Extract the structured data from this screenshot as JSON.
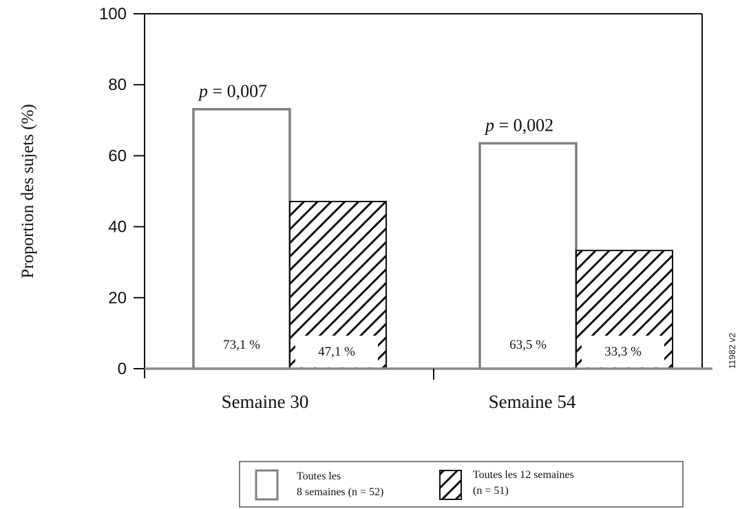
{
  "chart_data": {
    "type": "bar",
    "ylabel": "Proportion des sujets (%)",
    "ylim": [
      0,
      100
    ],
    "yticks": [
      0,
      20,
      40,
      60,
      80,
      100
    ],
    "categories": [
      "Semaine 30",
      "Semaine 54"
    ],
    "series": [
      {
        "name": "Toutes les 8 semaines (n = 52)",
        "values": [
          73.1,
          63.5
        ],
        "labels": [
          "73,1 %",
          "63,5 %"
        ],
        "pattern": "open"
      },
      {
        "name": "Toutes les 12 semaines (n = 51)",
        "values": [
          47.1,
          33.3
        ],
        "labels": [
          "47,1 %",
          "33,3 %"
        ],
        "pattern": "hatched"
      }
    ],
    "annotations": [
      {
        "category": "Semaine 30",
        "p_symbol": "p",
        "p_value": " = 0,007"
      },
      {
        "category": "Semaine 54",
        "p_symbol": "p",
        "p_value": " = 0,002"
      }
    ],
    "legend": {
      "position": "bottom-center",
      "items": [
        {
          "line1": "Toutes les",
          "line2": "8 semaines (n = 52)"
        },
        {
          "line1": "Toutes les 12 semaines",
          "line2": "(n = 51)"
        }
      ]
    },
    "figure_id": "11982 v2",
    "colors": {
      "bar_border": "#808080",
      "hatch": "#111111",
      "frame": "#111111"
    }
  }
}
